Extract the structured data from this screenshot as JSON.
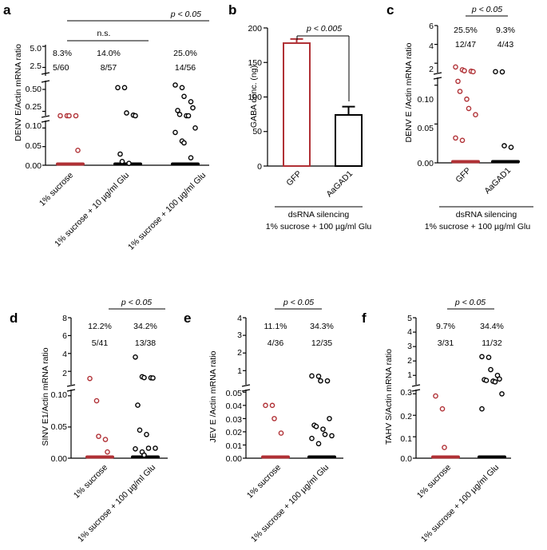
{
  "colors": {
    "red": "#B03035",
    "black": "#000000"
  },
  "chart_data": [
    {
      "panel": "a",
      "type": "scatter",
      "ylabel": "DENV E/Actin mRNA ratio",
      "y_axis_segments": [
        {
          "ticks": [
            "0.00",
            "0.05",
            "0.10"
          ],
          "range": [
            0,
            0.12
          ]
        },
        {
          "ticks": [
            "0.25",
            "0.50"
          ],
          "range": [
            0.2,
            0.6
          ]
        },
        {
          "ticks": [
            "2.5",
            "5.0"
          ],
          "range": [
            1.5,
            5.2
          ]
        }
      ],
      "categories": [
        "1% sucrose",
        "1% sucrose + 10 µg/ml Glu",
        "1% sucrose + 100 µg/ml Glu"
      ],
      "percent_labels": [
        "8.3%",
        "14.0%",
        "25.0%"
      ],
      "count_labels": [
        "5/60",
        "8/57",
        "14/56"
      ],
      "series_colors": [
        "red",
        "black",
        "black"
      ],
      "nonzero_values": [
        [
          0.128,
          0.128,
          0.128,
          0.125,
          0.04
        ],
        [
          0.52,
          0.52,
          0.232,
          0.207,
          0.14,
          0.03,
          0.01,
          0.005
        ],
        [
          0.55,
          0.52,
          0.42,
          0.36,
          0.29,
          0.26,
          0.215,
          0.135,
          0.13,
          0.1,
          0.088,
          0.065,
          0.06,
          0.02
        ]
      ],
      "significance": [
        {
          "groups": [
            0,
            1
          ],
          "label": "n.s."
        },
        {
          "groups": [
            0,
            2
          ],
          "label": "p < 0.05"
        }
      ]
    },
    {
      "panel": "b",
      "type": "bar",
      "ylabel": "GABA conc. (ng)",
      "ylim": [
        0,
        200
      ],
      "yticks": [
        "0",
        "50",
        "100",
        "150",
        "200"
      ],
      "categories": [
        "GFP",
        "AaGAD1"
      ],
      "values": [
        178,
        74
      ],
      "errors": [
        6,
        12
      ],
      "series_colors": [
        "red",
        "black"
      ],
      "group_label_1": "dsRNA silencing",
      "group_label_2": "1% sucrose + 100 µg/ml Glu",
      "significance": [
        {
          "groups": [
            0,
            1
          ],
          "label": "p < 0.005"
        }
      ]
    },
    {
      "panel": "c",
      "type": "scatter",
      "ylabel": "DENV E /Actin mRNA ratio",
      "y_axis_segments": [
        {
          "ticks": [
            "0.00",
            "0.05",
            "0.10"
          ],
          "range": [
            0,
            0.11
          ]
        },
        {
          "ticks": [
            "2",
            "4",
            "6"
          ],
          "range": [
            1,
            6
          ]
        }
      ],
      "categories": [
        "GFP",
        "AaGAD1"
      ],
      "percent_labels": [
        "25.5%",
        "9.3%"
      ],
      "count_labels": [
        "12/47",
        "4/43"
      ],
      "series_colors": [
        "red",
        "black"
      ],
      "nonzero_values": [
        [
          1.6,
          1.3,
          1.2,
          1.15,
          1.1,
          0.105,
          0.092,
          0.082,
          0.07,
          0.062,
          0.032,
          0.029
        ],
        [
          1.1,
          1.08,
          0.022,
          0.02
        ]
      ],
      "group_label_1": "dsRNA silencing",
      "group_label_2": "1% sucrose + 100 µg/ml  Glu",
      "significance": [
        {
          "groups": [
            0,
            1
          ],
          "label": "p < 0.05"
        }
      ]
    },
    {
      "panel": "d",
      "type": "scatter",
      "ylabel": "SINV E1/Actin mRNA ratio",
      "y_axis_segments": [
        {
          "ticks": [
            "0.00",
            "0.05",
            "0.10"
          ],
          "range": [
            0,
            0.11
          ]
        },
        {
          "ticks": [
            "2",
            "4",
            "6",
            "8"
          ],
          "range": [
            0.5,
            8
          ]
        }
      ],
      "categories": [
        "1% sucrose",
        "1% sucrose + 100 µg/ml Glu"
      ],
      "percent_labels": [
        "12.2%",
        "34.2%"
      ],
      "count_labels": [
        "5/41",
        "13/38"
      ],
      "series_colors": [
        "red",
        "black"
      ],
      "nonzero_values": [
        [
          1.2,
          0.092,
          0.035,
          0.03,
          0.01
        ],
        [
          3.6,
          1.4,
          1.3,
          1.28,
          1.26,
          0.085,
          0.045,
          0.038,
          0.016,
          0.016,
          0.015,
          0.01,
          0.005
        ]
      ],
      "significance": [
        {
          "groups": [
            0,
            1
          ],
          "label": "p < 0.05"
        }
      ]
    },
    {
      "panel": "e",
      "type": "scatter",
      "ylabel": "JEV E /Actin mRNA ratio",
      "y_axis_segments": [
        {
          "ticks": [
            "0.00",
            "0.01",
            "0.02",
            "0.03",
            "0.04",
            "0.05"
          ],
          "range": [
            0,
            0.052
          ]
        },
        {
          "ticks": [
            "1",
            "2",
            "3",
            "4"
          ],
          "range": [
            0.2,
            4
          ]
        }
      ],
      "categories": [
        "1% sucrose",
        "1% sucrose + 100 µg/ml Glu"
      ],
      "percent_labels": [
        "11.1%",
        "34.3%"
      ],
      "count_labels": [
        "4/36",
        "12/35"
      ],
      "series_colors": [
        "red",
        "black"
      ],
      "nonzero_values": [
        [
          0.04,
          0.04,
          0.03,
          0.019
        ],
        [
          0.7,
          0.68,
          0.42,
          0.42,
          0.03,
          0.025,
          0.024,
          0.022,
          0.018,
          0.017,
          0.015,
          0.011
        ]
      ],
      "significance": [
        {
          "groups": [
            0,
            1
          ],
          "label": "p < 0.05"
        }
      ]
    },
    {
      "panel": "f",
      "type": "scatter",
      "ylabel": "TAHV S/Actin mRNA ratio",
      "y_axis_segments": [
        {
          "ticks": [
            "0.0",
            "0.1",
            "0.2",
            "0.3"
          ],
          "range": [
            0,
            0.32
          ]
        },
        {
          "ticks": [
            "1",
            "2",
            "3",
            "4",
            "5"
          ],
          "range": [
            0.35,
            5
          ]
        }
      ],
      "categories": [
        "1% sucrose",
        "1% sucrose + 100 µg/ml Glu"
      ],
      "percent_labels": [
        "9.7%",
        "34.4%"
      ],
      "count_labels": [
        "3/31",
        "11/32"
      ],
      "series_colors": [
        "red",
        "black"
      ],
      "nonzero_values": [
        [
          0.29,
          0.23,
          0.05
        ],
        [
          2.3,
          2.25,
          1.4,
          1.0,
          0.75,
          0.7,
          0.65,
          0.6,
          0.55,
          0.3,
          0.23
        ]
      ],
      "significance": [
        {
          "groups": [
            0,
            1
          ],
          "label": "p < 0.05"
        }
      ]
    }
  ]
}
